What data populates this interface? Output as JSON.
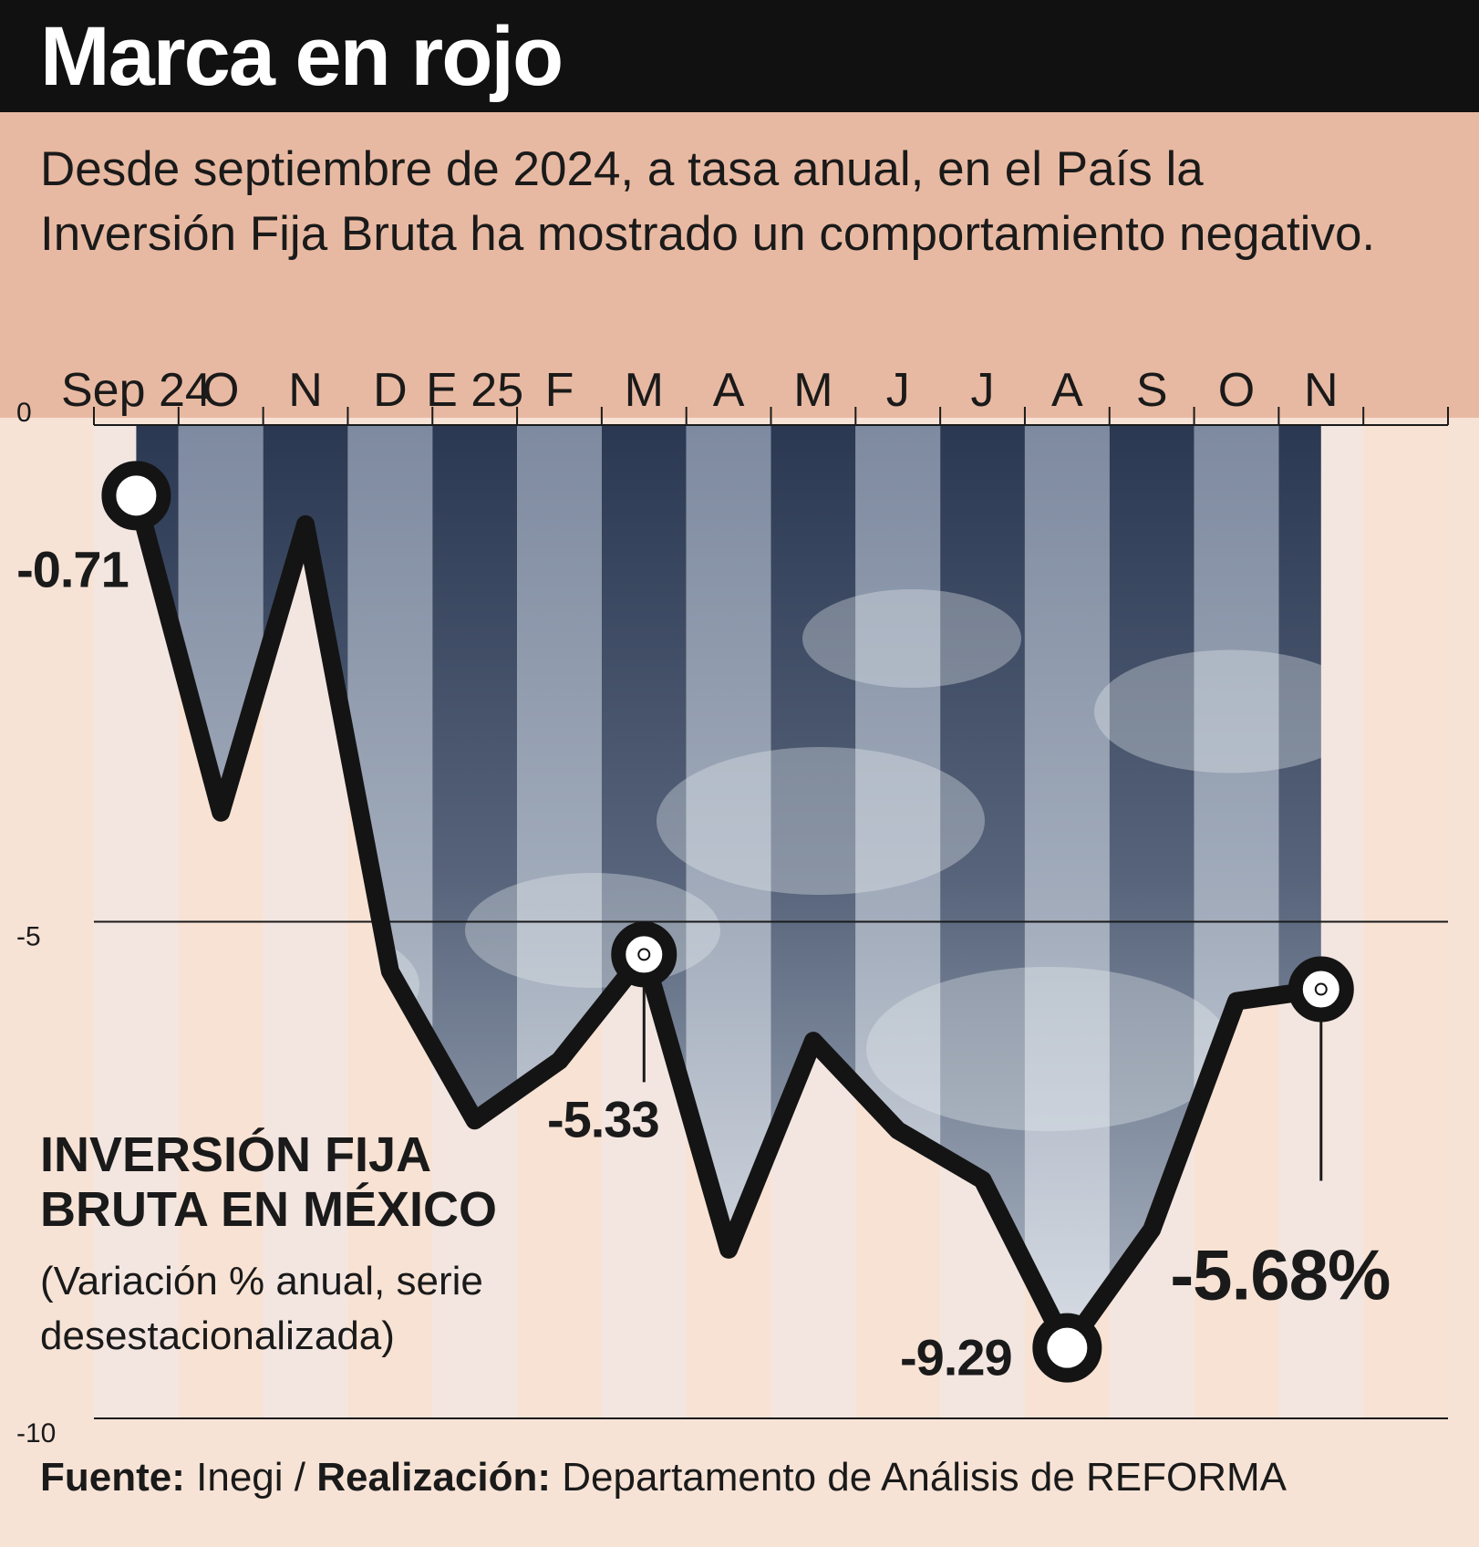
{
  "title": "Marca en rojo",
  "subtitle": "Desde septiembre de 2024, a tasa anual, en el País la Inversión Fija Bruta ha mostrado un comportamiento negativo.",
  "legend": {
    "title": "INVERSIÓN FIJA BRUTA EN MÉXICO",
    "subtitle": "(Variación % anual, serie desestacionalizada)"
  },
  "source": {
    "source_label": "Fuente:",
    "source_value": "Inegi",
    "separator": "/",
    "made_by_label": "Realización:",
    "made_by_value": "Departamento de Análisis de REFORMA"
  },
  "colors": {
    "line": "#141414",
    "title_bar": "#111111",
    "subtitle_band": "#e8b9a2",
    "background": "#f7e3d6",
    "storm_dark": "#2e3b55",
    "storm_light": "#b7c0cc"
  },
  "chart_data": {
    "type": "line",
    "title": "INVERSIÓN FIJA BRUTA EN MÉXICO",
    "ylabel": "Variación % anual, serie desestacionalizada",
    "categories": [
      "Sep 24",
      "O",
      "N",
      "D",
      "E 25",
      "F",
      "M",
      "A",
      "M",
      "J",
      "J",
      "A",
      "S",
      "O",
      "N"
    ],
    "values": [
      -0.71,
      -3.9,
      -1.0,
      -5.5,
      -7.0,
      -6.4,
      -5.33,
      -8.3,
      -6.2,
      -7.1,
      -7.6,
      -9.29,
      -8.1,
      -5.8,
      -5.68
    ],
    "ylim": [
      -10,
      0
    ],
    "yticks": [
      0,
      -5,
      -10
    ],
    "ytick_labels": [
      "0",
      "-5",
      "-10"
    ],
    "annotations": [
      {
        "index": 0,
        "label": "-0.71",
        "style": "bold"
      },
      {
        "index": 6,
        "label": "-5.33",
        "style": "bold"
      },
      {
        "index": 11,
        "label": "-9.29",
        "style": "bold"
      },
      {
        "index": 14,
        "label": "-5.68%",
        "style": "large"
      }
    ],
    "grid": "horizontal line at -5"
  }
}
